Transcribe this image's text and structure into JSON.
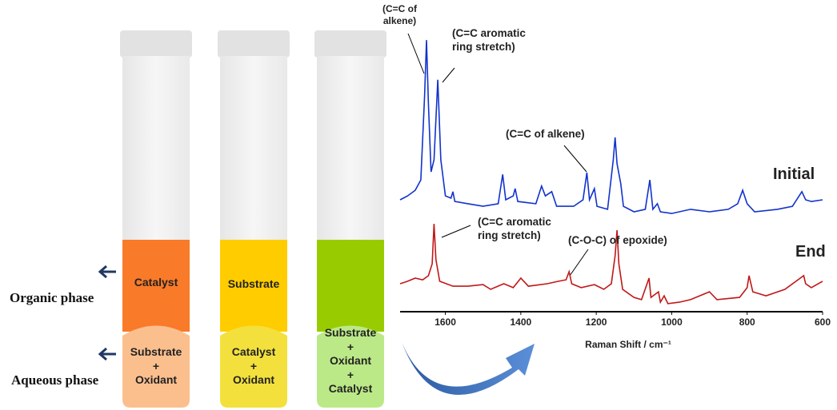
{
  "tubes": [
    {
      "organic": "Catalyst",
      "aqueous": "Substrate\n+\nOxidant"
    },
    {
      "organic": "Substrate",
      "aqueous": "Catalyst\n+\nOxidant"
    },
    {
      "organic": "",
      "aqueous": "Substrate\n+\nOxidant\n+\nCatalyst"
    }
  ],
  "phase_labels": {
    "organic": "Organic phase",
    "aqueous": "Aqueous phase"
  },
  "chart_data": {
    "type": "line",
    "x_label": "Raman Shift / cm⁻¹",
    "xlim": [
      1720,
      600
    ],
    "xticks": [
      1600,
      1400,
      1200,
      1000,
      800,
      600
    ],
    "ylim": [
      0,
      100
    ],
    "series": [
      {
        "name": "Initial",
        "color": "#1133cc",
        "x": [
          1720,
          1700,
          1680,
          1665,
          1655,
          1650,
          1645,
          1638,
          1630,
          1620,
          1612,
          1600,
          1585,
          1580,
          1575,
          1540,
          1500,
          1460,
          1448,
          1440,
          1420,
          1415,
          1408,
          1360,
          1345,
          1335,
          1318,
          1305,
          1260,
          1235,
          1225,
          1218,
          1205,
          1198,
          1170,
          1155,
          1150,
          1145,
          1135,
          1128,
          1100,
          1070,
          1058,
          1050,
          1038,
          1030,
          1000,
          950,
          900,
          850,
          825,
          812,
          800,
          780,
          720,
          680,
          655,
          645,
          630,
          600
        ],
        "values": [
          40,
          41.4,
          43.4,
          47.1,
          77.1,
          97.1,
          74.3,
          50,
          54.3,
          82.9,
          54.3,
          41.4,
          40.6,
          42.9,
          39.4,
          38.6,
          37.7,
          38.6,
          49.1,
          40,
          41.4,
          44,
          39.4,
          38.6,
          44.9,
          41.4,
          42.9,
          37.7,
          37.7,
          40,
          49.7,
          40,
          44,
          37.7,
          36.6,
          54.3,
          62.3,
          52.9,
          45.7,
          37.7,
          35.7,
          36.6,
          47.1,
          36.6,
          38.6,
          35.7,
          35.1,
          36.6,
          35.7,
          36.6,
          38.6,
          43.4,
          38.6,
          35.7,
          36.6,
          37.7,
          42.9,
          40,
          39.4,
          40
        ]
      },
      {
        "name": "End",
        "color": "#c01818",
        "x": [
          1720,
          1700,
          1680,
          1660,
          1645,
          1635,
          1630,
          1625,
          1615,
          1580,
          1540,
          1500,
          1480,
          1445,
          1420,
          1400,
          1380,
          1330,
          1300,
          1280,
          1272,
          1265,
          1240,
          1205,
          1180,
          1160,
          1150,
          1145,
          1140,
          1130,
          1100,
          1080,
          1060,
          1055,
          1035,
          1030,
          1020,
          1010,
          980,
          950,
          900,
          880,
          820,
          800,
          795,
          785,
          750,
          700,
          650,
          645,
          630,
          600
        ],
        "values": [
          10,
          10.9,
          12,
          11.4,
          12.9,
          17.1,
          31.4,
          18.6,
          10.9,
          9.1,
          9.1,
          9.7,
          8,
          10,
          8.6,
          12,
          9.1,
          10,
          10.9,
          11.4,
          14.3,
          10,
          8.6,
          9.7,
          8,
          10,
          20,
          29.1,
          17.1,
          8,
          5.1,
          4.3,
          12,
          5.1,
          7.1,
          3.4,
          5.7,
          2.9,
          3.4,
          4.3,
          7.1,
          4.3,
          5.1,
          8.6,
          12.9,
          7.1,
          5.7,
          8,
          12.9,
          10,
          8.6,
          10.9
        ]
      }
    ],
    "annotations": [
      "(C=C of\nalkene)",
      "(C=C aromatic\nring stretch)",
      "(C=C of alkene)",
      "(C=C aromatic\nring stretch)",
      "(C-O-C) of epoxide)"
    ]
  }
}
